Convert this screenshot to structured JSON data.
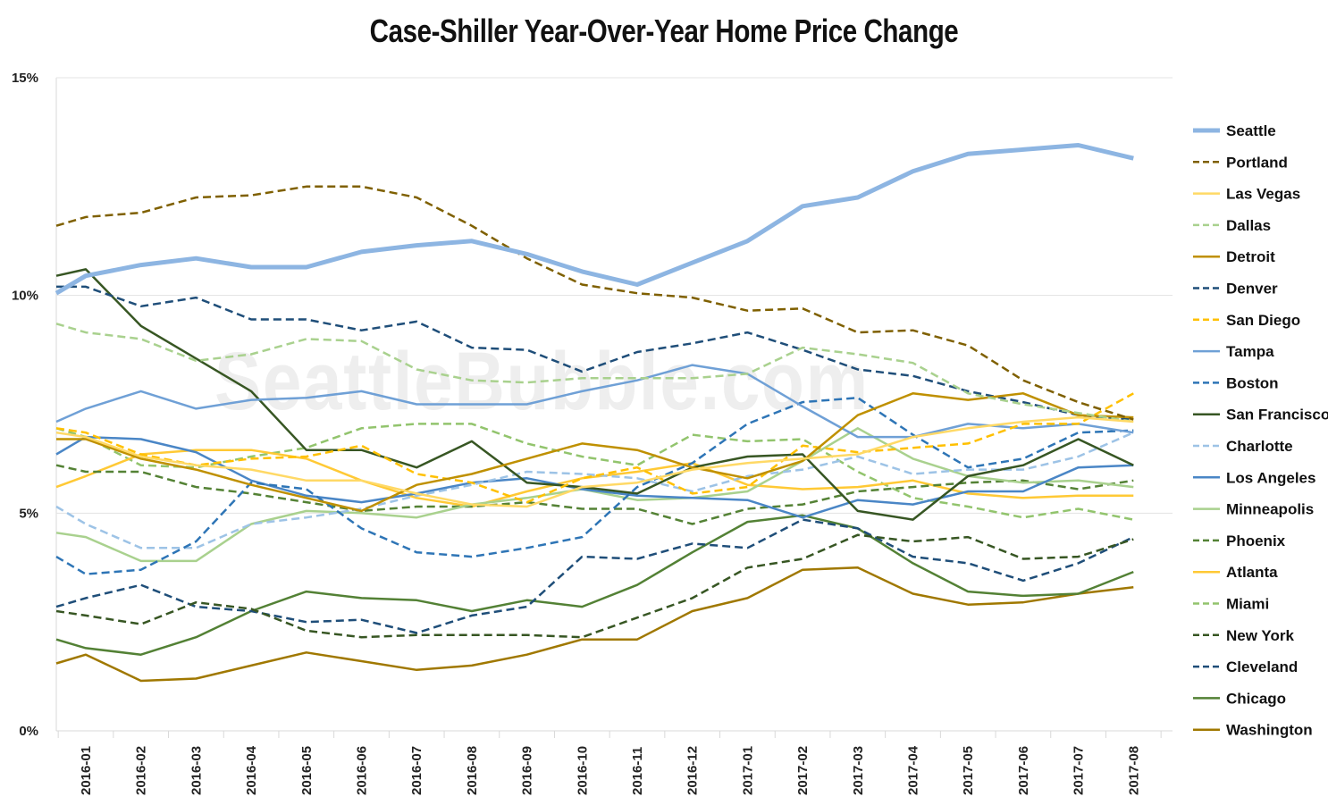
{
  "chart_data": {
    "type": "line",
    "title": "Case-Shiller Year-Over-Year Home Price Change",
    "watermark": "SeattleBubble.com",
    "xlabel": "",
    "ylabel": "",
    "ylim": [
      0,
      15
    ],
    "ytick_values": [
      0,
      5,
      10,
      15
    ],
    "ytick_labels": [
      "0%",
      "5%",
      "10%",
      "15%"
    ],
    "categories": [
      "2016-01",
      "2016-02",
      "2016-03",
      "2016-04",
      "2016-05",
      "2016-06",
      "2016-07",
      "2016-08",
      "2016-09",
      "2016-10",
      "2016-11",
      "2016-12",
      "2017-01",
      "2017-02",
      "2017-03",
      "2017-04",
      "2017-05",
      "2017-06",
      "2017-07",
      "2017-08"
    ],
    "grid": "horizontal",
    "legend_position": "right",
    "series": [
      {
        "name": "Seattle",
        "color": "#8db5e2",
        "style": "solid",
        "width": 5,
        "start": 10.05,
        "values": [
          10.45,
          10.7,
          10.85,
          10.65,
          10.65,
          11.0,
          11.15,
          11.25,
          10.95,
          10.55,
          10.25,
          10.75,
          11.25,
          12.05,
          12.25,
          12.85,
          13.25,
          13.35,
          13.45,
          13.15
        ]
      },
      {
        "name": "Portland",
        "color": "#7f6000",
        "style": "dash",
        "width": 2.5,
        "start": 11.6,
        "values": [
          11.8,
          11.9,
          12.25,
          12.3,
          12.5,
          12.5,
          12.25,
          11.6,
          10.85,
          10.25,
          10.05,
          9.95,
          9.65,
          9.7,
          9.15,
          9.2,
          8.85,
          8.05,
          7.55,
          7.15
        ]
      },
      {
        "name": "Las Vegas",
        "color": "#ffd966",
        "style": "solid",
        "width": 2.5,
        "start": 6.85,
        "values": [
          6.75,
          6.3,
          6.1,
          6.0,
          5.75,
          5.75,
          5.45,
          5.2,
          5.15,
          5.6,
          5.7,
          6.0,
          6.15,
          6.25,
          6.35,
          6.75,
          6.95,
          7.1,
          7.2,
          7.1
        ]
      },
      {
        "name": "Dallas",
        "color": "#a9d18e",
        "style": "dash",
        "width": 2.5,
        "start": 9.35,
        "values": [
          9.15,
          9.0,
          8.5,
          8.65,
          9.0,
          8.95,
          8.3,
          8.05,
          8.0,
          8.1,
          8.1,
          8.1,
          8.2,
          8.8,
          8.65,
          8.45,
          7.75,
          7.5,
          7.3,
          7.1
        ]
      },
      {
        "name": "Detroit",
        "color": "#bf9000",
        "style": "solid",
        "width": 2.5,
        "start": 6.7,
        "values": [
          6.7,
          6.25,
          6.0,
          5.65,
          5.35,
          5.05,
          5.65,
          5.9,
          6.25,
          6.6,
          6.45,
          6.05,
          5.8,
          6.2,
          7.25,
          7.75,
          7.6,
          7.75,
          7.25,
          7.2
        ]
      },
      {
        "name": "Denver",
        "color": "#1f4e79",
        "style": "dash",
        "width": 2.5,
        "start": 10.2,
        "values": [
          10.2,
          9.75,
          9.95,
          9.45,
          9.45,
          9.2,
          9.4,
          8.8,
          8.75,
          8.25,
          8.7,
          8.9,
          9.15,
          8.75,
          8.3,
          8.15,
          7.8,
          7.55,
          7.25,
          7.15
        ]
      },
      {
        "name": "San Diego",
        "color": "#ffc000",
        "style": "dash",
        "width": 2.5,
        "start": 6.95,
        "values": [
          6.85,
          6.35,
          6.1,
          6.25,
          6.3,
          6.55,
          5.9,
          5.7,
          5.25,
          5.8,
          6.05,
          5.45,
          5.6,
          6.55,
          6.4,
          6.5,
          6.6,
          7.05,
          7.05,
          7.75
        ]
      },
      {
        "name": "Tampa",
        "color": "#6fa0d6",
        "style": "solid",
        "width": 2.5,
        "start": 7.1,
        "values": [
          7.4,
          7.8,
          7.4,
          7.6,
          7.65,
          7.8,
          7.5,
          7.5,
          7.5,
          7.8,
          8.05,
          8.4,
          8.2,
          7.45,
          6.75,
          6.75,
          7.05,
          6.95,
          7.05,
          6.85
        ]
      },
      {
        "name": "Boston",
        "color": "#2e75b6",
        "style": "dash",
        "width": 2.5,
        "start": 4.0,
        "values": [
          3.6,
          3.7,
          4.35,
          5.7,
          5.55,
          4.65,
          4.1,
          4.0,
          4.2,
          4.45,
          5.6,
          6.15,
          7.05,
          7.55,
          7.65,
          6.8,
          6.05,
          6.25,
          6.85,
          6.9
        ]
      },
      {
        "name": "San Francisco",
        "color": "#375623",
        "style": "solid",
        "width": 2.5,
        "start": 10.45,
        "values": [
          10.6,
          9.3,
          8.55,
          7.8,
          6.45,
          6.45,
          6.05,
          6.65,
          5.7,
          5.6,
          5.45,
          6.05,
          6.3,
          6.35,
          5.05,
          4.85,
          5.85,
          6.1,
          6.7,
          6.1
        ]
      },
      {
        "name": "Charlotte",
        "color": "#9dc3e6",
        "style": "dash",
        "width": 2.5,
        "start": 5.15,
        "values": [
          4.75,
          4.2,
          4.2,
          4.75,
          4.9,
          5.1,
          5.4,
          5.65,
          5.95,
          5.9,
          5.8,
          5.5,
          5.85,
          6.0,
          6.3,
          5.9,
          6.0,
          6.0,
          6.3,
          6.85
        ]
      },
      {
        "name": "Los Angeles",
        "color": "#4a86c6",
        "style": "solid",
        "width": 2.5,
        "start": 6.35,
        "values": [
          6.75,
          6.7,
          6.4,
          5.75,
          5.4,
          5.25,
          5.45,
          5.7,
          5.8,
          5.55,
          5.4,
          5.35,
          5.3,
          4.9,
          5.3,
          5.2,
          5.5,
          5.5,
          6.05,
          6.1
        ]
      },
      {
        "name": "Minneapolis",
        "color": "#a9d18e",
        "style": "solid",
        "width": 2.5,
        "start": 4.55,
        "values": [
          4.45,
          3.9,
          3.9,
          4.75,
          5.05,
          5.0,
          4.9,
          5.2,
          5.35,
          5.55,
          5.3,
          5.35,
          5.5,
          6.2,
          6.95,
          6.25,
          5.85,
          5.7,
          5.75,
          5.6
        ]
      },
      {
        "name": "Phoenix",
        "color": "#548235",
        "style": "dash",
        "width": 2.5,
        "start": 6.1,
        "values": [
          5.95,
          5.95,
          5.6,
          5.45,
          5.25,
          5.05,
          5.15,
          5.15,
          5.25,
          5.1,
          5.1,
          4.75,
          5.1,
          5.2,
          5.5,
          5.6,
          5.7,
          5.75,
          5.55,
          5.75
        ]
      },
      {
        "name": "Atlanta",
        "color": "#ffc935",
        "style": "solid",
        "width": 2.5,
        "start": 5.6,
        "values": [
          5.85,
          6.35,
          6.45,
          6.45,
          6.25,
          5.75,
          5.35,
          5.15,
          5.5,
          5.8,
          5.95,
          6.15,
          5.65,
          5.55,
          5.6,
          5.75,
          5.45,
          5.35,
          5.4,
          5.4
        ]
      },
      {
        "name": "Miami",
        "color": "#92c46d",
        "style": "dash",
        "width": 2.5,
        "start": 6.95,
        "values": [
          6.75,
          6.1,
          6.05,
          6.3,
          6.5,
          6.95,
          7.05,
          7.05,
          6.6,
          6.3,
          6.1,
          6.8,
          6.65,
          6.7,
          5.95,
          5.35,
          5.15,
          4.9,
          5.1,
          4.85
        ]
      },
      {
        "name": "New York",
        "color": "#375623",
        "style": "dash",
        "width": 2.5,
        "start": 2.75,
        "values": [
          2.65,
          2.45,
          2.95,
          2.8,
          2.3,
          2.15,
          2.2,
          2.2,
          2.2,
          2.15,
          2.6,
          3.05,
          3.75,
          3.95,
          4.5,
          4.35,
          4.45,
          3.95,
          4.0,
          4.4
        ]
      },
      {
        "name": "Cleveland",
        "color": "#1f4e79",
        "style": "dash",
        "width": 2.5,
        "start": 2.85,
        "values": [
          3.05,
          3.35,
          2.85,
          2.75,
          2.5,
          2.55,
          2.25,
          2.65,
          2.85,
          4.0,
          3.95,
          4.3,
          4.2,
          4.85,
          4.65,
          4.0,
          3.85,
          3.45,
          3.85,
          4.45
        ]
      },
      {
        "name": "Chicago",
        "color": "#538135",
        "style": "solid",
        "width": 2.5,
        "start": 2.1,
        "values": [
          1.9,
          1.75,
          2.15,
          2.75,
          3.2,
          3.05,
          3.0,
          2.75,
          3.0,
          2.85,
          3.35,
          4.1,
          4.8,
          4.95,
          4.65,
          3.85,
          3.2,
          3.1,
          3.15,
          3.65
        ]
      },
      {
        "name": "Washington",
        "color": "#a07800",
        "style": "solid",
        "width": 2.5,
        "start": 1.55,
        "values": [
          1.75,
          1.15,
          1.2,
          1.5,
          1.8,
          1.6,
          1.4,
          1.5,
          1.75,
          2.1,
          2.1,
          2.75,
          3.05,
          3.7,
          3.75,
          3.15,
          2.9,
          2.95,
          3.15,
          3.3
        ]
      }
    ]
  }
}
